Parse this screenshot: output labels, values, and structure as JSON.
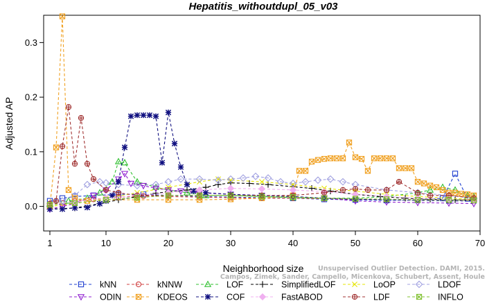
{
  "chart_data": {
    "type": "line",
    "title": "Hepatitis_withoutdupl_05_v03",
    "xlabel": "Neighborhood size",
    "ylabel": "Adjusted AP",
    "xlim": [
      0,
      70
    ],
    "ylim": [
      -0.045,
      0.35
    ],
    "xticks": [
      1,
      10,
      20,
      30,
      40,
      50,
      60,
      70
    ],
    "yticks": [
      0.0,
      0.1,
      0.2,
      0.3
    ],
    "ytick_labels": [
      "0.0",
      "0.1",
      "0.2",
      "0.3"
    ],
    "grid": false,
    "legend_position": "bottom",
    "watermark_lines": [
      "Unsupervised Outlier Detection. DAMI, 2015.",
      "Campos, Zimek, Sander, Campello, Micenkova, Schubert, Assent, Houle"
    ],
    "series": [
      {
        "name": "kNN",
        "color": "#1f3fd0",
        "marker": "square",
        "x": [
          1,
          3,
          5,
          8,
          12,
          16,
          20,
          25,
          30,
          35,
          40,
          45,
          50,
          55,
          60,
          64,
          66,
          68,
          69
        ],
        "y": [
          0.01,
          0.015,
          0.018,
          0.02,
          0.022,
          0.022,
          0.02,
          0.018,
          0.017,
          0.016,
          0.015,
          0.013,
          0.012,
          0.011,
          0.012,
          0.015,
          0.06,
          0.014,
          0.012
        ]
      },
      {
        "name": "kNNW",
        "color": "#d04040",
        "marker": "circle",
        "x": [
          1,
          3,
          5,
          8,
          12,
          16,
          20,
          25,
          30,
          35,
          40,
          45,
          50,
          55,
          60,
          65,
          69
        ],
        "y": [
          0.005,
          0.006,
          0.01,
          0.013,
          0.017,
          0.019,
          0.018,
          0.017,
          0.016,
          0.015,
          0.015,
          0.014,
          0.013,
          0.013,
          0.012,
          0.012,
          0.012
        ]
      },
      {
        "name": "LOF",
        "color": "#30c030",
        "marker": "triangle-up",
        "x": [
          1,
          4,
          7,
          9,
          11,
          12,
          13,
          15,
          18,
          20,
          23,
          26,
          30,
          35,
          40,
          45,
          50,
          55,
          60,
          62,
          64,
          66,
          68,
          69
        ],
        "y": [
          0.005,
          0.01,
          0.015,
          0.025,
          0.045,
          0.082,
          0.08,
          0.045,
          0.035,
          0.03,
          0.025,
          0.02,
          0.02,
          0.018,
          0.016,
          0.015,
          0.015,
          0.018,
          0.025,
          0.03,
          0.035,
          0.03,
          0.02,
          0.018
        ]
      },
      {
        "name": "SimplifiedLOF",
        "color": "#000000",
        "marker": "plus",
        "x": [
          1,
          5,
          9,
          12,
          15,
          18,
          20,
          23,
          26,
          28,
          30,
          33,
          36,
          40,
          43,
          46,
          50,
          54,
          58,
          62,
          66,
          69
        ],
        "y": [
          -0.005,
          -0.003,
          0.005,
          0.012,
          0.018,
          0.024,
          0.027,
          0.03,
          0.035,
          0.04,
          0.043,
          0.042,
          0.04,
          0.036,
          0.033,
          0.028,
          0.022,
          0.018,
          0.015,
          0.013,
          0.012,
          0.011
        ]
      },
      {
        "name": "LoOP",
        "color": "#e6e600",
        "marker": "x",
        "x": [
          1,
          5,
          10,
          15,
          20,
          25,
          28,
          30,
          35,
          40,
          45,
          50,
          55,
          60,
          65,
          69
        ],
        "y": [
          0.0,
          0.005,
          0.015,
          0.025,
          0.035,
          0.045,
          0.05,
          0.048,
          0.045,
          0.04,
          0.033,
          0.028,
          0.022,
          0.018,
          0.015,
          0.013
        ]
      },
      {
        "name": "LDOF",
        "color": "#a0a0e0",
        "marker": "diamond",
        "x": [
          1,
          3,
          5,
          7,
          9,
          10,
          12,
          15,
          18,
          20,
          22,
          25,
          28,
          30,
          32,
          34,
          36,
          38,
          40,
          42,
          44,
          46,
          48,
          50,
          55,
          60,
          65,
          69
        ],
        "y": [
          0.005,
          0.01,
          0.02,
          0.04,
          0.045,
          0.043,
          0.04,
          0.038,
          0.04,
          0.045,
          0.05,
          0.05,
          0.048,
          0.05,
          0.052,
          0.055,
          0.052,
          0.045,
          0.042,
          0.045,
          0.048,
          0.05,
          0.045,
          0.04,
          0.03,
          0.025,
          0.02,
          0.015
        ]
      },
      {
        "name": "ODIN",
        "color": "#9020d0",
        "marker": "triangle-down",
        "x": [
          1,
          3,
          5,
          8,
          10,
          12,
          13,
          14,
          16,
          18,
          20,
          22,
          25,
          30,
          35,
          40,
          45,
          50,
          55,
          60,
          65,
          69
        ],
        "y": [
          -0.005,
          0.0,
          0.005,
          0.02,
          0.03,
          0.05,
          0.06,
          0.042,
          0.038,
          0.033,
          0.03,
          0.028,
          0.025,
          0.022,
          0.02,
          0.018,
          0.015,
          0.01,
          0.008,
          0.007,
          0.006,
          0.005
        ]
      },
      {
        "name": "KDEOS",
        "color": "#f0a020",
        "marker": "square-x",
        "x": [
          1,
          2,
          3,
          4,
          5,
          7,
          10,
          15,
          20,
          25,
          30,
          35,
          40,
          41,
          42,
          43,
          44,
          45,
          46,
          47,
          48,
          49,
          50,
          51,
          52,
          53,
          54,
          55,
          56,
          57,
          58,
          59,
          60,
          61,
          62,
          63,
          64,
          65,
          66,
          67,
          68,
          69
        ],
        "y": [
          0.0,
          0.108,
          0.348,
          0.03,
          0.015,
          0.01,
          0.012,
          0.012,
          0.012,
          0.012,
          0.013,
          0.015,
          0.02,
          0.065,
          0.065,
          0.082,
          0.085,
          0.087,
          0.088,
          0.088,
          0.088,
          0.117,
          0.09,
          0.087,
          0.065,
          0.088,
          0.088,
          0.088,
          0.088,
          0.07,
          0.07,
          0.07,
          0.045,
          0.042,
          0.038,
          0.035,
          0.03,
          0.025,
          0.025,
          0.023,
          0.022,
          0.02
        ]
      },
      {
        "name": "COF",
        "color": "#101080",
        "marker": "asterisk",
        "x": [
          1,
          3,
          5,
          7,
          9,
          10,
          11,
          12,
          13,
          14,
          15,
          16,
          17,
          18,
          19,
          20,
          21,
          22,
          23,
          24,
          26,
          30,
          35,
          40,
          45,
          50,
          55,
          60,
          65,
          69
        ],
        "y": [
          -0.005,
          -0.005,
          -0.003,
          -0.002,
          0.005,
          0.01,
          0.02,
          0.045,
          0.108,
          0.165,
          0.167,
          0.167,
          0.167,
          0.165,
          0.08,
          0.172,
          0.115,
          0.072,
          0.04,
          0.028,
          0.025,
          0.022,
          0.02,
          0.018,
          0.015,
          0.013,
          0.012,
          0.011,
          0.01,
          0.01
        ]
      },
      {
        "name": "FastABOD",
        "color": "#f0b0f0",
        "marker": "diamond-filled",
        "x": [
          1,
          5,
          10,
          15,
          20,
          25,
          30,
          35,
          40,
          45,
          50,
          55,
          60,
          65,
          69
        ],
        "y": [
          0.005,
          0.008,
          0.015,
          0.02,
          0.025,
          0.03,
          0.033,
          0.032,
          0.03,
          0.027,
          0.022,
          0.018,
          0.015,
          0.012,
          0.01
        ]
      },
      {
        "name": "LDF",
        "color": "#a03030",
        "marker": "circle-plus",
        "x": [
          1,
          2,
          3,
          4,
          5,
          6,
          7,
          8,
          10,
          12,
          15,
          20,
          25,
          30,
          35,
          40,
          45,
          48,
          50,
          52,
          55,
          57,
          60,
          62,
          65,
          69
        ],
        "y": [
          0.005,
          0.01,
          0.11,
          0.182,
          0.078,
          0.162,
          0.078,
          0.05,
          0.03,
          0.025,
          0.02,
          0.02,
          0.02,
          0.02,
          0.02,
          0.02,
          0.025,
          0.03,
          0.032,
          0.03,
          0.03,
          0.045,
          0.025,
          0.02,
          0.02,
          0.015
        ]
      },
      {
        "name": "INFLO",
        "color": "#80c030",
        "marker": "square-x",
        "x": [
          1,
          5,
          10,
          15,
          20,
          25,
          30,
          35,
          40,
          45,
          50,
          55,
          60,
          65,
          69
        ],
        "y": [
          0.003,
          0.006,
          0.012,
          0.016,
          0.02,
          0.02,
          0.02,
          0.018,
          0.017,
          0.015,
          0.014,
          0.013,
          0.012,
          0.012,
          0.011
        ]
      }
    ]
  }
}
